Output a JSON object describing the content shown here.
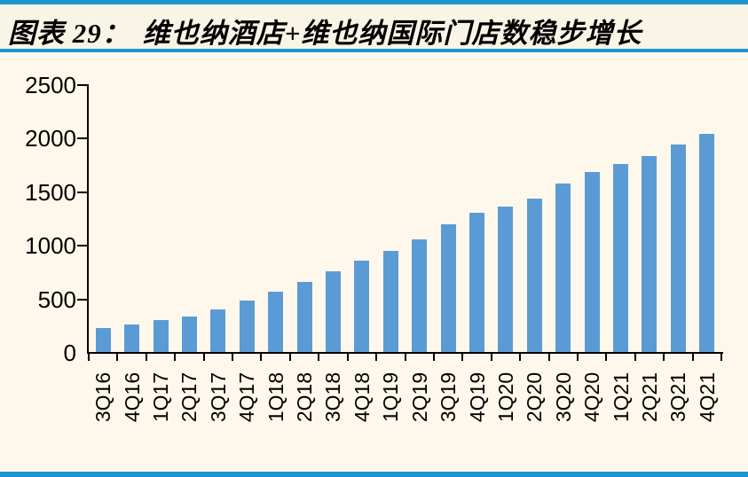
{
  "header": {
    "label": "图表 29：",
    "title": "维也纳酒店+维也纳国际门店数稳步增长"
  },
  "chart_data": {
    "type": "bar",
    "title": "维也纳酒店+维也纳国际门店数稳步增长",
    "categories": [
      "3Q16",
      "4Q16",
      "1Q17",
      "2Q17",
      "3Q17",
      "4Q17",
      "1Q18",
      "2Q18",
      "3Q18",
      "4Q18",
      "1Q19",
      "2Q19",
      "3Q19",
      "4Q19",
      "1Q20",
      "2Q20",
      "3Q20",
      "4Q20",
      "1Q21",
      "2Q21",
      "3Q21",
      "4Q21"
    ],
    "values": [
      220,
      260,
      300,
      335,
      400,
      480,
      560,
      655,
      755,
      850,
      945,
      1050,
      1190,
      1300,
      1360,
      1435,
      1575,
      1680,
      1755,
      1830,
      1935,
      2035
    ],
    "xlabel": "",
    "ylabel": "",
    "ylim": [
      0,
      2500
    ],
    "yticks": [
      0,
      500,
      1000,
      1500,
      2000,
      2500
    ],
    "grid": false,
    "legend": "none",
    "bar_color": "#5B9BD5",
    "axis_color": "#000000",
    "accent_rule_color": "#1E96CE",
    "background_color": "#FDF8EB"
  }
}
